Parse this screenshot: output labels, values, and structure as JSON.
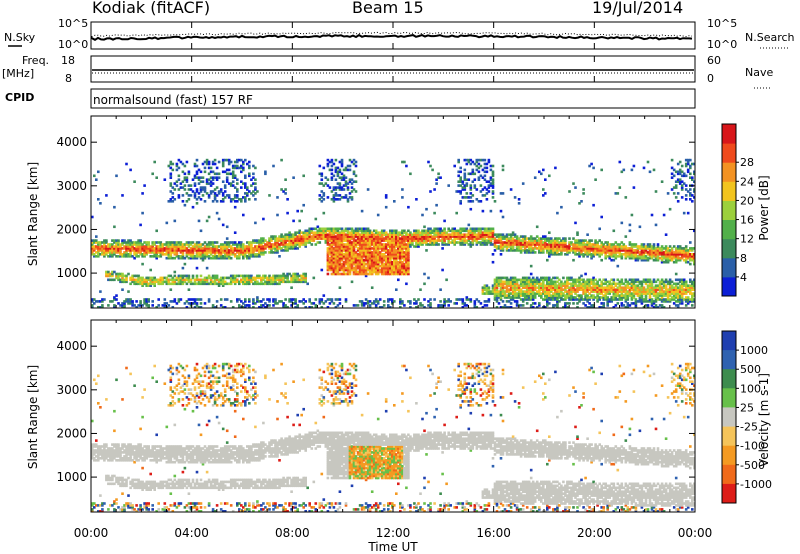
{
  "header": {
    "station": "Kodiak (fitACF)",
    "beam": "Beam 15",
    "date": "19/Jul/2014"
  },
  "status_panels": {
    "nsky_label": "N.Sky",
    "nsky_ticks": [
      "10^5",
      "10^0"
    ],
    "nsearch_label": "N.Search",
    "nsearch_ticks": [
      "10^5",
      "10^0"
    ],
    "freq_label_1": "Freq.",
    "freq_label_2": "[MHz]",
    "freq_ticks": [
      "18",
      "8"
    ],
    "nave_label": "Nave",
    "nave_ticks": [
      "60",
      "0"
    ],
    "cpid_label": "CPID",
    "cpid_value": "normalsound (fast) 157 RF"
  },
  "chart_data": [
    {
      "type": "heatmap",
      "name": "power",
      "ylabel": "Slant Range [km]",
      "ylim": [
        200,
        4600
      ],
      "yticks": [
        1000,
        2000,
        3000,
        4000
      ],
      "xlim_hours": [
        0,
        24
      ],
      "colorbar": {
        "label": "Power [dB]",
        "ticks": [
          "4",
          "8",
          "12",
          "16",
          "20",
          "24",
          "28"
        ],
        "colors": [
          "#0c1fd6",
          "#2a5fa8",
          "#3c8a5c",
          "#52b04a",
          "#9cd03c",
          "#f2c41e",
          "#f39222",
          "#ef4a1c",
          "#d8161a"
        ]
      }
    },
    {
      "type": "heatmap",
      "name": "velocity",
      "ylabel": "Slant Range [km]",
      "ylim": [
        200,
        4600
      ],
      "yticks": [
        1000,
        2000,
        3000,
        4000
      ],
      "xlim_hours": [
        0,
        24
      ],
      "colorbar": {
        "label": "Velocity [m s-1]",
        "ticks": [
          "1000",
          "500",
          "100",
          "25",
          "-25",
          "-100",
          "-500",
          "-1000"
        ],
        "colors": [
          "#1f3fb0",
          "#2f62b0",
          "#3d8c4e",
          "#67c04a",
          "#c7c7c0",
          "#f5c45a",
          "#f49a22",
          "#f06a1a",
          "#dd1d18"
        ]
      }
    }
  ],
  "x_axis": {
    "label": "Time UT",
    "ticks": [
      "00:00",
      "04:00",
      "08:00",
      "12:00",
      "16:00",
      "20:00",
      "00:00"
    ]
  }
}
